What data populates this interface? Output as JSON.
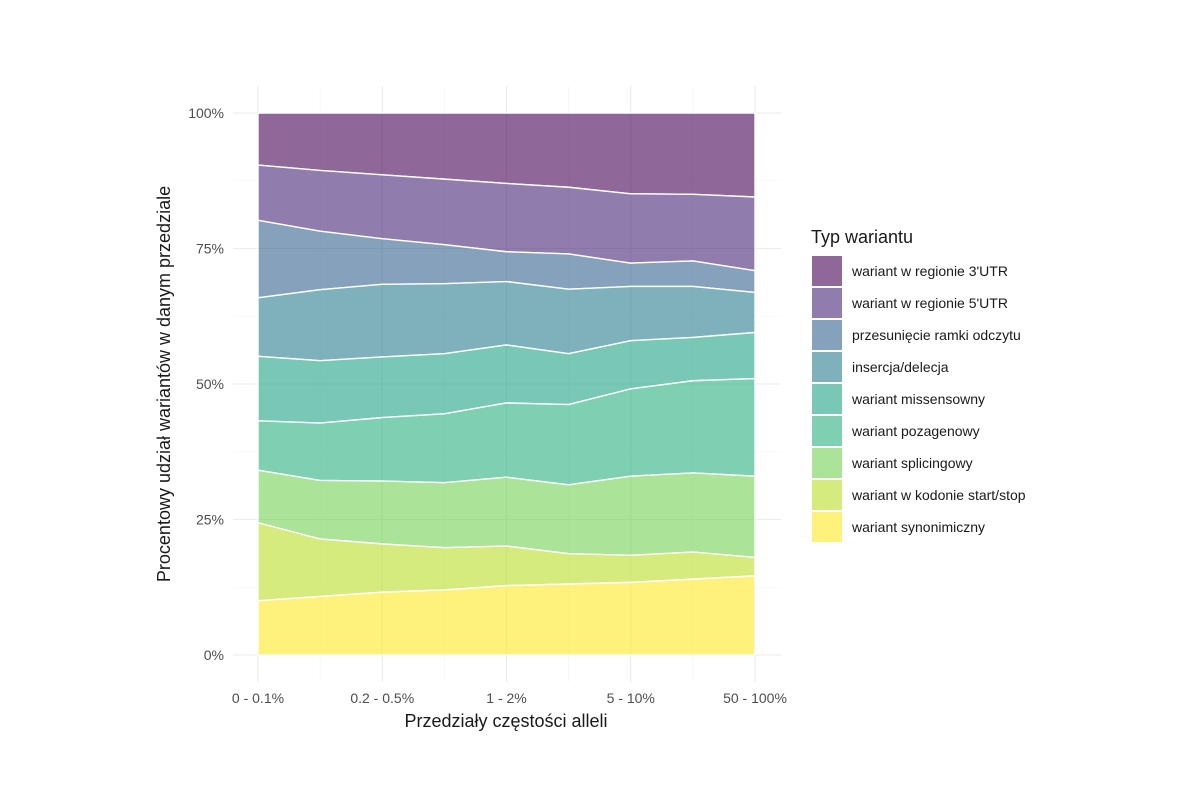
{
  "chart_data": {
    "type": "area",
    "stacked": true,
    "normalized": true,
    "xlabel": "Przedziały częstości alleli",
    "ylabel": "Procentowy udział wariantów w danym przedziale",
    "ylim": [
      0,
      100
    ],
    "y_ticks": [
      "0%",
      "25%",
      "50%",
      "75%",
      "100%"
    ],
    "x_tick_labels": [
      "0 - 0.1%",
      "0.2 - 0.5%",
      "1 - 2%",
      "5 - 10%",
      "50 - 100%"
    ],
    "x_positions": 9,
    "grid": true,
    "legend": {
      "title": "Typ wariantu",
      "position": "right"
    },
    "series": [
      {
        "name": "wariant synonimiczny",
        "color": "#FDE725",
        "values": [
          10.0,
          10.8,
          11.6,
          12.0,
          12.8,
          13.1,
          13.4,
          14.0,
          14.6
        ]
      },
      {
        "name": "wariant w kodonie start/stop",
        "color": "#BADE28",
        "values": [
          14.4,
          10.6,
          8.9,
          7.8,
          7.3,
          5.6,
          5.0,
          5.0,
          3.4
        ]
      },
      {
        "name": "wariant splicingowy",
        "color": "#73D055",
        "values": [
          9.7,
          10.8,
          11.6,
          12.0,
          12.7,
          12.7,
          14.6,
          14.6,
          15.0
        ]
      },
      {
        "name": "wariant pozagenowy",
        "color": "#29AF7F",
        "values": [
          9.1,
          10.6,
          11.7,
          12.7,
          13.7,
          14.8,
          16.1,
          17.0,
          18.0
        ]
      },
      {
        "name": "wariant missensowny",
        "color": "#20A386",
        "values": [
          11.9,
          11.5,
          11.2,
          11.1,
          10.7,
          9.4,
          8.9,
          8.0,
          8.5
        ]
      },
      {
        "name": "insercja/delecja",
        "color": "#287D8E",
        "values": [
          10.8,
          13.1,
          13.4,
          12.9,
          11.7,
          11.9,
          10.0,
          9.4,
          7.4
        ]
      },
      {
        "name": "przesunięcie ramki odczytu",
        "color": "#33638D",
        "values": [
          14.3,
          10.8,
          8.4,
          7.2,
          5.5,
          6.5,
          4.3,
          4.7,
          4.0
        ]
      },
      {
        "name": "wariant w regionie 5'UTR",
        "color": "#482677",
        "values": [
          10.2,
          11.2,
          11.8,
          12.1,
          12.6,
          12.3,
          12.8,
          12.3,
          13.6
        ]
      },
      {
        "name": "wariant w regionie 3'UTR",
        "color": "#440154",
        "values": [
          9.6,
          10.6,
          11.4,
          12.2,
          13.0,
          13.7,
          14.9,
          15.0,
          15.5
        ]
      }
    ]
  }
}
